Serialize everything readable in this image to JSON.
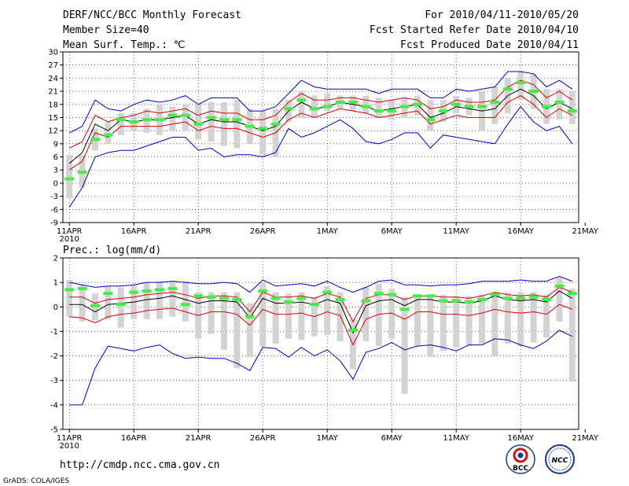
{
  "header": {
    "title": "DERF/NCC/BCC Monthly Forecast",
    "member_size": "Member Size=40",
    "variable": "Mean Surf. Temp.: ℃",
    "period": "For 2010/04/11-2010/05/20",
    "start_date": "Fcst Started Refer Date 2010/04/10",
    "produced_date": "Fcst Produced Date 2010/04/11"
  },
  "footer": {
    "url": "http://cmdp.ncc.cma.gov.cn",
    "credit": "GrADS: COLA/IGES",
    "logo_bcc_text": "BCC",
    "logo_ncc_text": "NCC"
  },
  "colors": {
    "max_min": "#0000cc",
    "spread": "#dd0000",
    "mean": "#000000",
    "median_marker": "#44ee44",
    "box": "#d3d3d3",
    "grid": "#000000"
  },
  "chart_data": [
    {
      "type": "box-line",
      "title": "Mean Surf. Temp.: ℃",
      "ylim": [
        -9,
        30
      ],
      "yticks": [
        -9,
        -6,
        -3,
        0,
        3,
        6,
        9,
        12,
        15,
        18,
        21,
        24,
        27,
        30
      ],
      "x_days": 40,
      "xticks": [
        {
          "day": 1,
          "label": "11APR",
          "sub": "2010"
        },
        {
          "day": 6,
          "label": "16APR"
        },
        {
          "day": 11,
          "label": "21APR"
        },
        {
          "day": 16,
          "label": "26APR"
        },
        {
          "day": 21,
          "label": "1MAY"
        },
        {
          "day": 26,
          "label": "6MAY"
        },
        {
          "day": 31,
          "label": "11MAY"
        },
        {
          "day": 36,
          "label": "16MAY"
        },
        {
          "day": 41,
          "label": "21MAY"
        }
      ],
      "series": [
        {
          "name": "max",
          "values": [
            11.5,
            13,
            19,
            17,
            16.5,
            18,
            19,
            18.5,
            19,
            20,
            18,
            19.5,
            19.5,
            19.5,
            16.5,
            16.5,
            17.5,
            20.5,
            23.5,
            22,
            21.5,
            21.5,
            21.5,
            21.5,
            20.5,
            21.5,
            21.5,
            21.5,
            19.5,
            19.5,
            21.5,
            21,
            21.5,
            22,
            25.5,
            25.5,
            25,
            22,
            23.5,
            21.5
          ]
        },
        {
          "name": "upper",
          "values": [
            8,
            9.5,
            15.5,
            14,
            15,
            15.5,
            16.5,
            16,
            16.5,
            17,
            15.5,
            16.5,
            16,
            16,
            14.5,
            14.5,
            15.5,
            18.5,
            20.5,
            19,
            19,
            19.5,
            19.5,
            19,
            18.5,
            19,
            19.5,
            19,
            17,
            17.5,
            19,
            18.5,
            18.5,
            19,
            22,
            23.5,
            22.5,
            19.5,
            21,
            19
          ]
        },
        {
          "name": "mean",
          "values": [
            4.5,
            7,
            13.5,
            12,
            14.5,
            14,
            14.5,
            14.5,
            15,
            15.5,
            13.5,
            14.5,
            14,
            14,
            13,
            12,
            13,
            16.5,
            18.5,
            17,
            17.5,
            18.5,
            18,
            17.5,
            16.5,
            17,
            17.5,
            18,
            15,
            16,
            17.5,
            17,
            16.5,
            17,
            20,
            21.5,
            20,
            17,
            18.5,
            17
          ]
        },
        {
          "name": "lower",
          "values": [
            3,
            5,
            11.5,
            10.5,
            13,
            13,
            13,
            13,
            13.5,
            14,
            12,
            13,
            12.5,
            12.5,
            11.5,
            10.5,
            11.5,
            14.5,
            16,
            15,
            16,
            17,
            16.5,
            16,
            15,
            15.5,
            16,
            16.5,
            13.5,
            14.5,
            15.5,
            15,
            15,
            15,
            18.5,
            20,
            18,
            15,
            17,
            15.5
          ]
        },
        {
          "name": "min",
          "values": [
            -5.5,
            -1,
            6,
            7,
            7.5,
            7.5,
            8.5,
            9.5,
            10.5,
            10.5,
            7.5,
            8,
            6,
            6.5,
            6.5,
            6,
            7,
            12.5,
            10.5,
            11.5,
            13,
            14.5,
            12.5,
            9.5,
            9,
            10,
            11.5,
            11.5,
            8,
            11,
            10.5,
            10,
            9.5,
            9,
            13.5,
            17.5,
            14,
            12,
            13,
            9
          ]
        }
      ],
      "boxes": [
        {
          "lo": -3.5,
          "hi": 6.5
        },
        {
          "lo": -1,
          "hi": 6.5
        },
        {
          "lo": 7.5,
          "hi": 12.5
        },
        {
          "lo": 9,
          "hi": 14
        },
        {
          "lo": 11,
          "hi": 16
        },
        {
          "lo": 12,
          "hi": 16
        },
        {
          "lo": 11.5,
          "hi": 17
        },
        {
          "lo": 11,
          "hi": 18
        },
        {
          "lo": 12,
          "hi": 17.5
        },
        {
          "lo": 12,
          "hi": 18
        },
        {
          "lo": 10,
          "hi": 18
        },
        {
          "lo": 9.5,
          "hi": 18.5
        },
        {
          "lo": 8.5,
          "hi": 18.5
        },
        {
          "lo": 8,
          "hi": 19
        },
        {
          "lo": 9,
          "hi": 17
        },
        {
          "lo": 6.5,
          "hi": 16.5
        },
        {
          "lo": 6,
          "hi": 17
        },
        {
          "lo": 14,
          "hi": 19
        },
        {
          "lo": 15,
          "hi": 21
        },
        {
          "lo": 15,
          "hi": 20
        },
        {
          "lo": 16.5,
          "hi": 20.5
        },
        {
          "lo": 17,
          "hi": 20
        },
        {
          "lo": 16.5,
          "hi": 20
        },
        {
          "lo": 16,
          "hi": 20
        },
        {
          "lo": 15,
          "hi": 19.5
        },
        {
          "lo": 14.5,
          "hi": 19
        },
        {
          "lo": 15,
          "hi": 19.5
        },
        {
          "lo": 15.5,
          "hi": 20
        },
        {
          "lo": 12,
          "hi": 19
        },
        {
          "lo": 14,
          "hi": 19
        },
        {
          "lo": 16,
          "hi": 20
        },
        {
          "lo": 15.5,
          "hi": 19.5
        },
        {
          "lo": 12,
          "hi": 21
        },
        {
          "lo": 13.5,
          "hi": 22
        },
        {
          "lo": 16,
          "hi": 24
        },
        {
          "lo": 19,
          "hi": 25.5
        },
        {
          "lo": 17,
          "hi": 25
        },
        {
          "lo": 13.5,
          "hi": 21.5
        },
        {
          "lo": 14.5,
          "hi": 21.5
        },
        {
          "lo": 13.5,
          "hi": 21
        }
      ],
      "median": [
        1,
        2.5,
        10,
        11,
        14.5,
        14,
        14.5,
        14.5,
        15.5,
        15.5,
        13.5,
        15,
        14.5,
        14.5,
        13,
        12.5,
        13.5,
        17,
        19,
        17,
        17.5,
        18.5,
        18.5,
        17.5,
        16.5,
        16.5,
        17.5,
        18,
        14.5,
        16.5,
        18,
        17.5,
        17.5,
        18.5,
        21.5,
        23,
        21,
        17.5,
        18.5,
        16.5
      ]
    },
    {
      "type": "box-line",
      "title": "Prec.: log(mm/d)",
      "ylim": [
        -5,
        2
      ],
      "yticks": [
        -5,
        -4,
        -3,
        -2,
        -1,
        0,
        1,
        2
      ],
      "x_days": 40,
      "xticks": [
        {
          "day": 1,
          "label": "11APR",
          "sub": "2010"
        },
        {
          "day": 6,
          "label": "16APR"
        },
        {
          "day": 11,
          "label": "21APR"
        },
        {
          "day": 16,
          "label": "26APR"
        },
        {
          "day": 21,
          "label": "1MAY"
        },
        {
          "day": 26,
          "label": "6MAY"
        },
        {
          "day": 31,
          "label": "11MAY"
        },
        {
          "day": 36,
          "label": "16MAY"
        },
        {
          "day": 41,
          "label": "21MAY"
        }
      ],
      "series": [
        {
          "name": "max",
          "values": [
            1,
            0.9,
            0.8,
            0.85,
            0.85,
            0.9,
            1,
            1,
            1.05,
            1,
            0.95,
            0.95,
            1,
            0.95,
            0.6,
            1.1,
            0.85,
            0.9,
            0.95,
            0.85,
            1.05,
            0.8,
            0.6,
            0.8,
            1.05,
            1.1,
            0.9,
            0.9,
            0.85,
            0.9,
            0.9,
            0.95,
            1.05,
            1.05,
            1.05,
            1.1,
            1.05,
            1.05,
            1.25,
            1.05
          ]
        },
        {
          "name": "upper",
          "values": [
            0.4,
            0.4,
            0.15,
            0.3,
            0.35,
            0.4,
            0.5,
            0.55,
            0.6,
            0.5,
            0.35,
            0.45,
            0.45,
            0.4,
            -0.2,
            0.6,
            0.4,
            0.4,
            0.45,
            0.35,
            0.55,
            0.4,
            -0.6,
            0.35,
            0.5,
            0.5,
            0.3,
            0.45,
            0.45,
            0.4,
            0.4,
            0.35,
            0.45,
            0.6,
            0.5,
            0.45,
            0.5,
            0.4,
            0.8,
            0.6
          ]
        },
        {
          "name": "mean",
          "values": [
            0.1,
            0.1,
            -0.2,
            0.1,
            0.15,
            0.2,
            0.3,
            0.35,
            0.45,
            0.3,
            0.15,
            0.25,
            0.25,
            0.2,
            -0.45,
            0.35,
            0.15,
            0.15,
            0.2,
            0.1,
            0.3,
            0.15,
            -1.05,
            0.05,
            0.25,
            0.3,
            0.05,
            0.3,
            0.3,
            0.2,
            0.2,
            0.15,
            0.25,
            0.45,
            0.3,
            0.25,
            0.3,
            0.2,
            0.65,
            0.35
          ]
        },
        {
          "name": "lower",
          "values": [
            -0.4,
            -0.45,
            -0.65,
            -0.4,
            -0.3,
            -0.25,
            -0.15,
            -0.1,
            -0.05,
            -0.2,
            -0.35,
            -0.2,
            -0.2,
            -0.3,
            -0.75,
            -0.1,
            -0.3,
            -0.3,
            -0.25,
            -0.4,
            -0.2,
            -0.35,
            -1.55,
            -0.5,
            -0.3,
            -0.25,
            -0.5,
            -0.2,
            -0.2,
            -0.3,
            -0.3,
            -0.35,
            -0.25,
            -0.1,
            -0.2,
            -0.25,
            -0.2,
            -0.3,
            0.1,
            -0.1
          ]
        },
        {
          "name": "min",
          "values": [
            -4,
            -4,
            -2.5,
            -1.6,
            -1.7,
            -1.8,
            -1.65,
            -1.55,
            -1.9,
            -2.1,
            -2.05,
            -2.1,
            -2.1,
            -2.3,
            -2.6,
            -1.65,
            -1.7,
            -2.05,
            -1.65,
            -2,
            -1.75,
            -2.2,
            -2.95,
            -1.85,
            -1.7,
            -1.45,
            -1.75,
            -1.6,
            -1.55,
            -1.65,
            -1.8,
            -1.55,
            -1.55,
            -1.3,
            -1.35,
            -1.55,
            -1.7,
            -1.4,
            -0.95,
            -1.2
          ]
        }
      ],
      "boxes": [
        {
          "lo": -0.4,
          "hi": 1.1
        },
        {
          "lo": -0.6,
          "hi": 0.9
        },
        {
          "lo": -0.55,
          "hi": 0.55
        },
        {
          "lo": -0.5,
          "hi": 0.85
        },
        {
          "lo": -0.85,
          "hi": 0.8
        },
        {
          "lo": -0.5,
          "hi": 0.9
        },
        {
          "lo": -0.5,
          "hi": 1
        },
        {
          "lo": -0.5,
          "hi": 1.05
        },
        {
          "lo": -0.4,
          "hi": 1.05
        },
        {
          "lo": -0.6,
          "hi": 1.05
        },
        {
          "lo": -1.3,
          "hi": 0.6
        },
        {
          "lo": -1.1,
          "hi": 0.6
        },
        {
          "lo": -1.75,
          "hi": 0.6
        },
        {
          "lo": -2.5,
          "hi": 0.6
        },
        {
          "lo": -2.05,
          "hi": 0.15
        },
        {
          "lo": -1.6,
          "hi": 1
        },
        {
          "lo": -1.5,
          "hi": 0.6
        },
        {
          "lo": -1.3,
          "hi": 0.55
        },
        {
          "lo": -1.35,
          "hi": 0.6
        },
        {
          "lo": -1.2,
          "hi": 0.4
        },
        {
          "lo": -1.15,
          "hi": 0.85
        },
        {
          "lo": -1.4,
          "hi": 0.6
        },
        {
          "lo": -2.55,
          "hi": -0.5
        },
        {
          "lo": -1.4,
          "hi": 0.8
        },
        {
          "lo": -1.6,
          "hi": 0.95
        },
        {
          "lo": -1.3,
          "hi": 0.75
        },
        {
          "lo": -3.55,
          "hi": 0.4
        },
        {
          "lo": -1.6,
          "hi": 0.5
        },
        {
          "lo": -2.05,
          "hi": 0.5
        },
        {
          "lo": -1.8,
          "hi": 0.5
        },
        {
          "lo": -1.65,
          "hi": 0.45
        },
        {
          "lo": -1.6,
          "hi": 0.45
        },
        {
          "lo": -1.5,
          "hi": 0.5
        },
        {
          "lo": -2,
          "hi": 0.6
        },
        {
          "lo": -1.5,
          "hi": 0.6
        },
        {
          "lo": -1.6,
          "hi": 0.6
        },
        {
          "lo": -1.45,
          "hi": 0.6
        },
        {
          "lo": -1.25,
          "hi": 0.5
        },
        {
          "lo": -0.6,
          "hi": 1.2
        },
        {
          "lo": -3.05,
          "hi": 0.75
        }
      ],
      "median": [
        0.7,
        0.75,
        0.05,
        0.55,
        0.1,
        0.6,
        0.65,
        0.7,
        0.75,
        0.1,
        0.45,
        0.4,
        0.35,
        0.3,
        -0.4,
        0.65,
        0.35,
        0.2,
        0.35,
        0.1,
        0.6,
        0.3,
        -0.95,
        0.25,
        0.55,
        0.5,
        -0.1,
        0.45,
        0.45,
        0.25,
        0.25,
        0.2,
        0.3,
        0.5,
        0.35,
        0.35,
        0.4,
        0.3,
        0.85,
        0.55
      ]
    }
  ]
}
